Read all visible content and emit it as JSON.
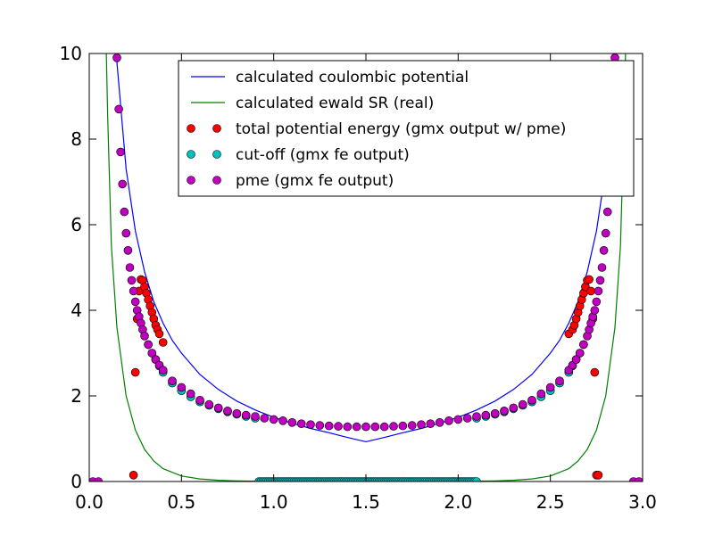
{
  "chart_data": {
    "type": "line",
    "xlim": [
      0.0,
      3.0
    ],
    "ylim": [
      0,
      10
    ],
    "xticks": [
      "0.0",
      "0.5",
      "1.0",
      "1.5",
      "2.0",
      "2.5",
      "3.0"
    ],
    "yticks": [
      "0",
      "2",
      "4",
      "6",
      "8",
      "10"
    ],
    "grid": false,
    "legend_position": "top-right",
    "series": [
      {
        "name": "calculated coulombic potential",
        "kind": "line",
        "color": "#0000ff",
        "x": [
          0.15,
          0.2,
          0.25,
          0.3,
          0.35,
          0.4,
          0.45,
          0.5,
          0.6,
          0.7,
          0.8,
          0.9,
          1.0,
          1.1,
          1.2,
          1.3,
          1.4,
          1.5,
          1.6,
          1.7,
          1.8,
          1.9,
          2.0,
          2.1,
          2.2,
          2.3,
          2.4,
          2.5,
          2.55,
          2.6,
          2.65,
          2.7,
          2.75,
          2.8,
          2.85
        ],
        "y": [
          9.8,
          7.3,
          5.85,
          4.9,
          4.2,
          3.7,
          3.3,
          3.0,
          2.5,
          2.15,
          1.88,
          1.67,
          1.5,
          1.36,
          1.24,
          1.14,
          1.03,
          0.93,
          1.03,
          1.14,
          1.24,
          1.36,
          1.5,
          1.67,
          1.88,
          2.15,
          2.5,
          3.0,
          3.3,
          3.7,
          4.2,
          4.9,
          5.85,
          7.3,
          9.8
        ]
      },
      {
        "name": "calculated ewald SR (real)",
        "kind": "line",
        "color": "#008000",
        "x": [
          0.09,
          0.1,
          0.12,
          0.15,
          0.2,
          0.25,
          0.3,
          0.35,
          0.4,
          0.5,
          0.6,
          0.7,
          0.8,
          1.0,
          1.2,
          1.5,
          1.8,
          2.0,
          2.2,
          2.3,
          2.4,
          2.5,
          2.6,
          2.65,
          2.7,
          2.75,
          2.8,
          2.85,
          2.88,
          2.9,
          2.91
        ],
        "y": [
          10.5,
          8.5,
          5.5,
          3.6,
          2.0,
          1.2,
          0.75,
          0.48,
          0.3,
          0.13,
          0.06,
          0.03,
          0.015,
          0.003,
          0.0008,
          0.0,
          0.0008,
          0.003,
          0.015,
          0.03,
          0.06,
          0.13,
          0.3,
          0.48,
          0.75,
          1.2,
          2.0,
          3.6,
          5.5,
          8.5,
          10.5
        ]
      },
      {
        "name": "total potential energy (gmx output w/ pme)",
        "kind": "markers",
        "color": "#ff0000",
        "x": [
          0.24,
          0.25,
          0.26,
          0.27,
          0.28,
          0.29,
          0.3,
          0.31,
          0.32,
          0.33,
          0.34,
          0.35,
          0.36,
          0.37,
          0.38,
          0.4,
          2.6,
          2.62,
          2.63,
          2.64,
          2.65,
          2.66,
          2.67,
          2.68,
          2.69,
          2.7,
          2.71,
          2.72,
          2.73,
          2.74,
          2.75,
          2.76
        ],
        "y": [
          0.15,
          2.55,
          3.8,
          4.45,
          4.72,
          4.7,
          4.55,
          4.4,
          4.25,
          4.1,
          3.95,
          3.8,
          3.65,
          3.55,
          3.45,
          3.25,
          3.45,
          3.55,
          3.65,
          3.8,
          3.95,
          4.1,
          4.25,
          4.4,
          4.55,
          4.7,
          4.72,
          4.45,
          3.8,
          2.55,
          0.15,
          0.15
        ]
      },
      {
        "name": "cut-off (gmx fe output)",
        "kind": "markers",
        "color": "#00bfbf",
        "x_range": [
          0.92,
          2.1
        ],
        "y_floor": 0.0,
        "note_curve_start": 0.3
      },
      {
        "name": "pme (gmx fe output)",
        "kind": "markers",
        "color": "#bf00bf",
        "x": [
          0.02,
          0.05,
          0.15,
          0.16,
          0.17,
          0.18,
          0.19,
          0.2,
          0.21,
          0.22,
          0.23,
          0.24,
          0.25,
          0.26,
          0.27,
          0.28,
          0.29,
          0.3,
          0.32,
          0.34,
          0.36,
          0.38,
          0.4,
          0.45,
          0.5,
          0.55,
          0.6,
          0.65,
          0.7,
          0.75,
          0.8,
          0.85,
          0.9,
          0.95,
          1.0,
          1.05,
          1.1,
          1.15,
          1.2,
          1.25,
          1.3,
          1.35,
          1.4,
          1.45,
          1.5,
          1.55,
          1.6,
          1.65,
          1.7,
          1.75,
          1.8,
          1.85,
          1.9,
          1.95,
          2.0,
          2.05,
          2.1,
          2.15,
          2.2,
          2.25,
          2.3,
          2.35,
          2.4,
          2.45,
          2.5,
          2.55,
          2.6,
          2.62,
          2.64,
          2.66,
          2.68,
          2.7,
          2.71,
          2.72,
          2.73,
          2.74,
          2.75,
          2.76,
          2.77,
          2.78,
          2.79,
          2.8,
          2.81,
          2.82,
          2.83,
          2.84,
          2.85,
          2.95,
          2.98
        ],
        "y": [
          0.0,
          0.0,
          9.9,
          8.7,
          7.7,
          6.95,
          6.3,
          5.8,
          5.4,
          5.0,
          4.7,
          4.45,
          4.2,
          4.0,
          3.85,
          3.7,
          3.55,
          3.4,
          3.2,
          3.0,
          2.85,
          2.72,
          2.6,
          2.35,
          2.2,
          2.05,
          1.9,
          1.8,
          1.72,
          1.65,
          1.59,
          1.55,
          1.52,
          1.48,
          1.45,
          1.42,
          1.38,
          1.35,
          1.33,
          1.31,
          1.3,
          1.29,
          1.28,
          1.28,
          1.28,
          1.28,
          1.28,
          1.29,
          1.3,
          1.31,
          1.33,
          1.35,
          1.38,
          1.42,
          1.45,
          1.48,
          1.52,
          1.55,
          1.59,
          1.65,
          1.72,
          1.8,
          1.9,
          2.05,
          2.2,
          2.35,
          2.6,
          2.72,
          2.85,
          3.0,
          3.2,
          3.4,
          3.55,
          3.7,
          3.85,
          4.0,
          4.2,
          4.45,
          4.7,
          5.0,
          5.4,
          5.8,
          6.3,
          6.95,
          7.7,
          8.7,
          9.9,
          0.0,
          0.0
        ]
      }
    ],
    "cutoff_curve": {
      "x": [
        0.32,
        0.34,
        0.36,
        0.38,
        0.4,
        0.45,
        0.5,
        0.55,
        0.6,
        0.65,
        0.7,
        0.75,
        0.8,
        0.85,
        0.9,
        2.1,
        2.15,
        2.2,
        2.25,
        2.3,
        2.35,
        2.4,
        2.45,
        2.5,
        2.55,
        2.6,
        2.62,
        2.64,
        2.66,
        2.68
      ],
      "y": [
        3.2,
        3.0,
        2.85,
        2.7,
        2.55,
        2.3,
        2.12,
        1.98,
        1.86,
        1.78,
        1.7,
        1.63,
        1.57,
        1.52,
        1.48,
        1.48,
        1.52,
        1.57,
        1.63,
        1.7,
        1.78,
        1.86,
        1.98,
        2.12,
        2.3,
        2.55,
        2.7,
        2.85,
        3.0,
        3.2
      ]
    }
  }
}
